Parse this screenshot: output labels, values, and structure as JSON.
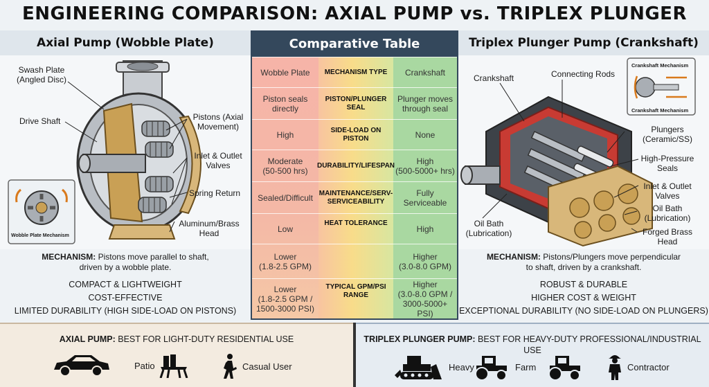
{
  "title": "ENGINEERING COMPARISON: AXIAL PUMP vs. TRIPLEX PLUNGER PUMP",
  "left_panel": {
    "title": "Axial Pump (Wobble Plate)",
    "labels": {
      "swash_plate": "Swash Plate\n(Angled Disc)",
      "drive_shaft": "Drive Shaft",
      "pistons": "Pistons (Axial\nMovement)",
      "valves": "Inlet & Outlet\nValves",
      "spring": "Spring Return",
      "head": "Aluminum/Brass\nHead",
      "inset": "Wobble Plate Mechanism"
    },
    "mechanism_label": "MECHANISM:",
    "mechanism_text": "Pistons move parallel to shaft,\ndriven by a wobble plate.",
    "features": [
      "COMPACT & LIGHTWEIGHT",
      "COST-EFFECTIVE",
      "LIMITED DURABILITY (HIGH SIDE-LOAD ON PISTONS)"
    ]
  },
  "right_panel": {
    "title": "Triplex Plunger Pump (Crankshaft)",
    "labels": {
      "crankshaft": "Crankshaft",
      "rods": "Connecting Rods",
      "inset_top": "Crankshaft Mechanism",
      "inset_bottom": "Crankshaft Mechanism",
      "plungers": "Plungers\n(Ceramic/SS)",
      "seals": "High-Pressure\nSeals",
      "valves": "Inlet & Outlet\nValves",
      "oil_bath_r": "Oil Bath\n(Lubrication)",
      "head": "Forged Brass\nHead",
      "oil_bath_l": "Oil Bath\n(Lubrication)"
    },
    "mechanism_label": "MECHANISM:",
    "mechanism_text": "Pistons/Plungers move perpendicular\nto shaft, driven by a crankshaft.",
    "features": [
      "ROBUST & DURABLE",
      "HIGHER COST & WEIGHT",
      "EXCEPTIONAL DURABILITY (NO SIDE-LOAD ON PLUNGERS)"
    ]
  },
  "table": {
    "title": "Comparative Table",
    "rows": [
      {
        "axial": "Wobble Plate",
        "metric": "MECHANISM TYPE",
        "triplex": "Crankshaft"
      },
      {
        "axial": "Piston seals\ndirectly",
        "metric": "PISTON/PLUNGER SEAL",
        "triplex": "Plunger moves\nthrough seal"
      },
      {
        "axial": "High",
        "metric": "SIDE-LOAD ON PISTON",
        "triplex": "None"
      },
      {
        "axial": "Moderate\n(50-500 hrs)",
        "metric": "DURABILITY/LIFESPAN",
        "triplex": "High\n(500-5000+ hrs)"
      },
      {
        "axial": "Sealed/Difficult",
        "metric": "MAINTENANCE/SERV-\nSERVICEABILITY",
        "triplex": "Fully\nServiceable"
      },
      {
        "axial": "Low",
        "metric": "HEAT TOLERANCE",
        "triplex": "High"
      },
      {
        "axial": "Lower\n(1.8-2.5 GPM)",
        "metric": "",
        "triplex": "Higher\n(3.0-8.0 GPM)"
      },
      {
        "axial": "Lower\n(1.8-2.5 GPM /\n1500-3000 PSI)",
        "metric": "TYPICAL GPM/PSI RANGE",
        "triplex": "Higher\n(3.0-8.0 GPM /\n3000-5000+ PSI)"
      }
    ]
  },
  "bottom_left": {
    "label": "AXIAL PUMP:",
    "text": "BEST FOR LIGHT-DUTY RESIDENTIAL USE",
    "uses": [
      "Patio",
      "Casual User"
    ]
  },
  "bottom_right": {
    "label": "TRIPLEX PLUNGER PUMP:",
    "text": "BEST FOR HEAVY-DUTY PROFESSIONAL/INDUSTRIAL USE",
    "uses": [
      "Heavy",
      "Farm",
      "Contractor"
    ]
  },
  "colors": {
    "red": "#f6b4a8",
    "yellow": "#f8dc8a",
    "green": "#a9d8a1",
    "header": "#34485c",
    "brass": "#c9a055"
  }
}
